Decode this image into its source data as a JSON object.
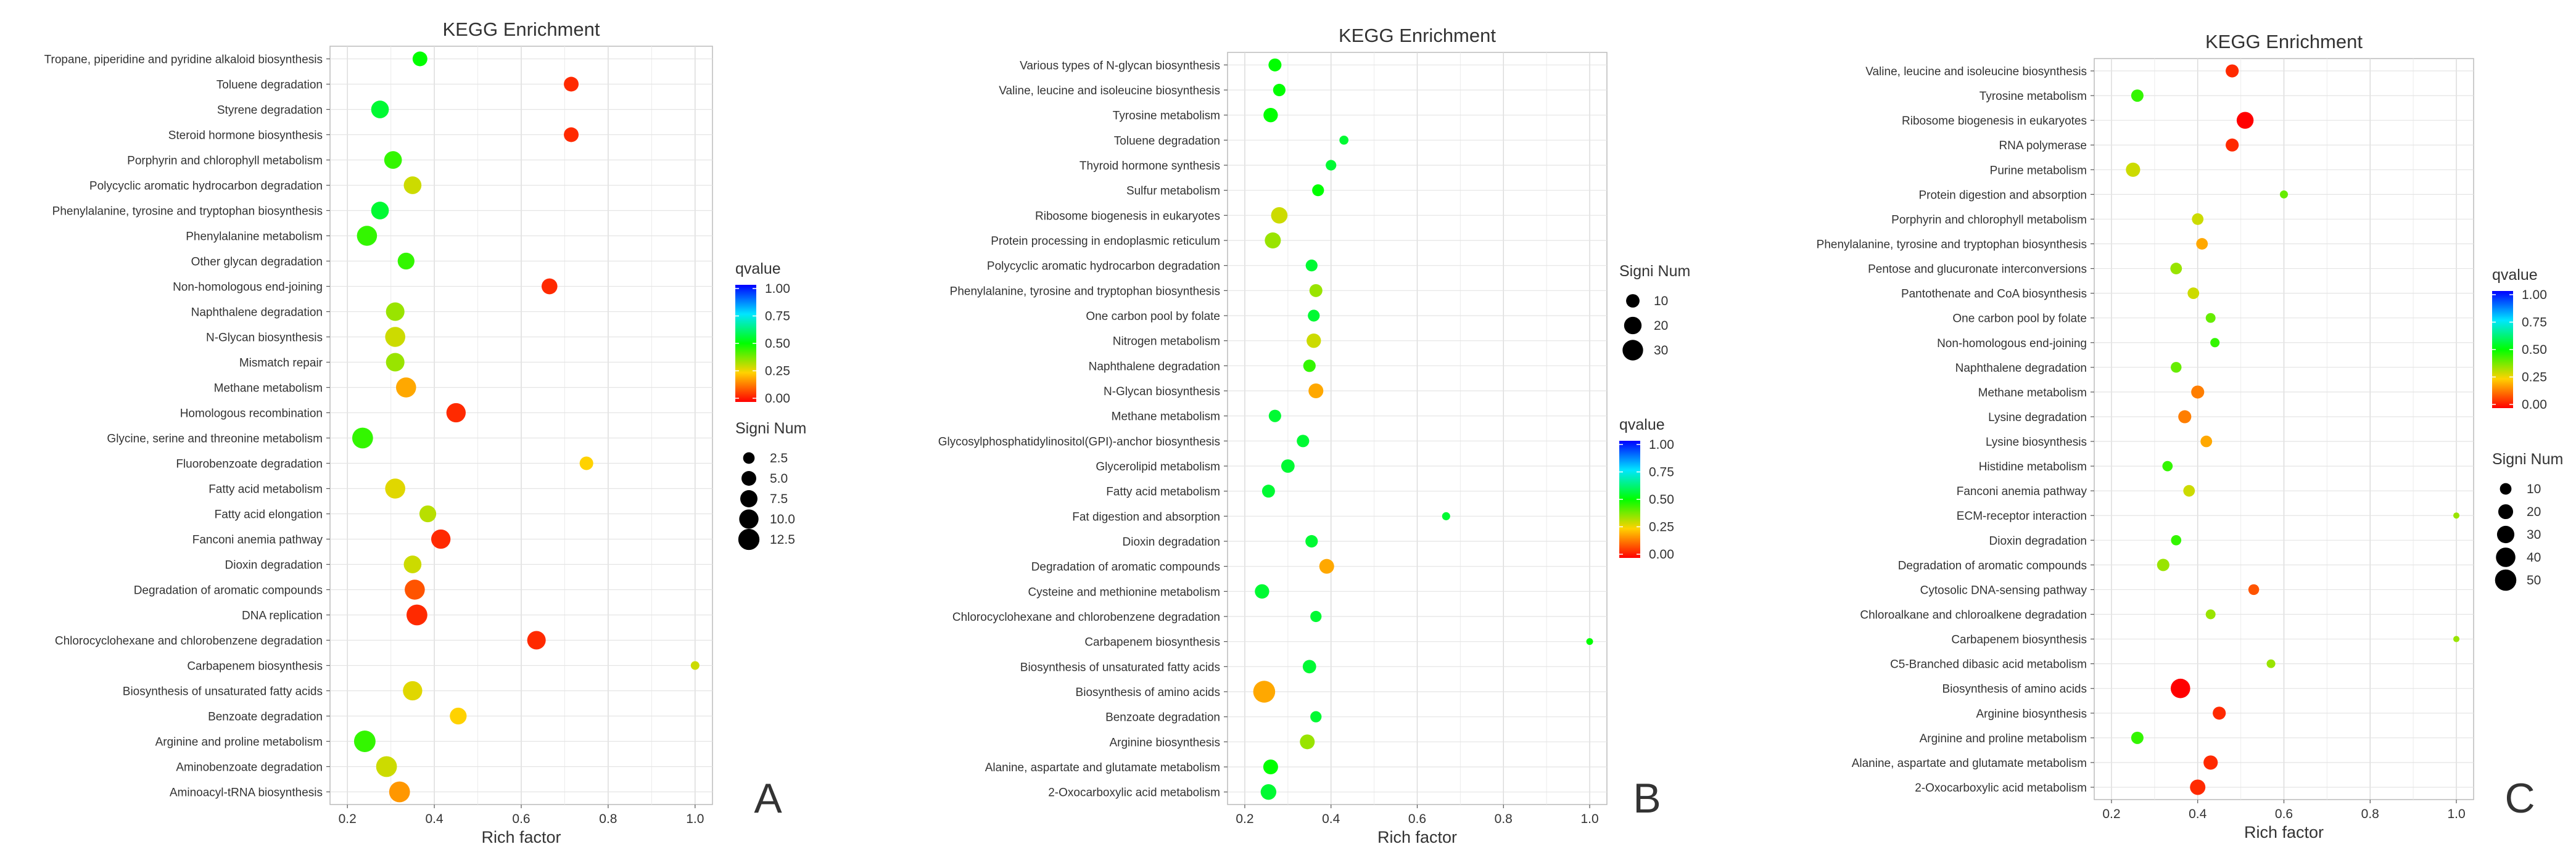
{
  "panel_letters": [
    "A",
    "B",
    "C"
  ],
  "chart_data": [
    {
      "type": "scatter",
      "title": "KEGG Enrichment",
      "xlabel": "Rich factor",
      "xlim": [
        0.2,
        1.0
      ],
      "xticks": [
        "0.2",
        "0.4",
        "0.6",
        "0.8",
        "1.0"
      ],
      "grid": true,
      "color_legend": {
        "title": "qvalue",
        "ticks": [
          "1.00",
          "0.75",
          "0.50",
          "0.25",
          "0.00"
        ],
        "low_color": "#ff0000",
        "mid_color": "#00ff00",
        "high_color": "#0000ff",
        "placement": "right"
      },
      "size_legend": {
        "title": "Signi Num",
        "ticks": [
          "2.5",
          "5.0",
          "7.5",
          "10.0",
          "12.5"
        ],
        "placement": "right"
      },
      "size_range": [
        1,
        14
      ],
      "categories": [
        "Tropane, piperidine and pyridine alkaloid biosynthesis",
        "Toluene degradation",
        "Styrene degradation",
        "Steroid hormone biosynthesis",
        "Porphyrin and chlorophyll metabolism",
        "Polycyclic aromatic hydrocarbon degradation",
        "Phenylalanine, tyrosine and tryptophan biosynthesis",
        "Phenylalanine metabolism",
        "Other glycan degradation",
        "Non-homologous end-joining",
        "Naphthalene degradation",
        "N-Glycan biosynthesis",
        "Mismatch repair",
        "Methane metabolism",
        "Homologous recombination",
        "Glycine, serine and threonine metabolism",
        "Fluorobenzoate degradation",
        "Fatty acid metabolism",
        "Fatty acid elongation",
        "Fanconi anemia pathway",
        "Dioxin degradation",
        "Degradation of aromatic compounds",
        "DNA replication",
        "Chlorocyclohexane and chlorobenzene degradation",
        "Carbapenem biosynthesis",
        "Biosynthesis of unsaturated fatty acids",
        "Benzoate degradation",
        "Arginine and proline metabolism",
        "Aminobenzoate degradation",
        "Aminoacyl-tRNA biosynthesis"
      ],
      "x": [
        0.367,
        0.715,
        0.275,
        0.715,
        0.305,
        0.35,
        0.275,
        0.245,
        0.335,
        0.665,
        0.31,
        0.31,
        0.31,
        0.335,
        0.45,
        0.235,
        0.75,
        0.31,
        0.385,
        0.415,
        0.35,
        0.355,
        0.36,
        0.635,
        1.0,
        0.35,
        0.455,
        0.24,
        0.29,
        0.32
      ],
      "size": [
        5,
        5,
        8,
        5,
        8,
        8,
        8,
        11,
        7,
        6,
        9,
        11,
        9,
        11,
        10,
        12,
        4,
        11,
        7,
        10,
        8,
        11,
        12,
        9,
        1,
        10,
        7,
        13,
        12,
        12
      ],
      "qvalue": [
        0.5,
        0.05,
        0.55,
        0.05,
        0.45,
        0.3,
        0.55,
        0.45,
        0.45,
        0.05,
        0.35,
        0.3,
        0.35,
        0.2,
        0.05,
        0.45,
        0.25,
        0.28,
        0.32,
        0.05,
        0.3,
        0.1,
        0.05,
        0.05,
        0.3,
        0.28,
        0.25,
        0.45,
        0.3,
        0.18
      ]
    },
    {
      "type": "scatter",
      "title": "KEGG Enrichment",
      "xlabel": "Rich factor",
      "xlim": [
        0.2,
        1.0
      ],
      "xticks": [
        "0.2",
        "0.4",
        "0.6",
        "0.8",
        "1.0"
      ],
      "grid": true,
      "color_legend": {
        "title": "qvalue",
        "ticks": [
          "1.00",
          "0.75",
          "0.50",
          "0.25",
          "0.00"
        ],
        "low_color": "#ff0000",
        "mid_color": "#00ff00",
        "high_color": "#0000ff",
        "placement": "right"
      },
      "size_legend": {
        "title": "Signi Num",
        "ticks": [
          "10",
          "20",
          "30"
        ],
        "placement": "right"
      },
      "size_range": [
        1,
        36
      ],
      "categories": [
        "Various types of N-glycan biosynthesis",
        "Valine, leucine and isoleucine biosynthesis",
        "Tyrosine metabolism",
        "Toluene degradation",
        "Thyroid hormone synthesis",
        "Sulfur metabolism",
        "Ribosome biogenesis in eukaryotes",
        "Protein processing in endoplasmic reticulum",
        "Polycyclic aromatic hydrocarbon degradation",
        "Phenylalanine, tyrosine and tryptophan biosynthesis",
        "One carbon pool by folate",
        "Nitrogen metabolism",
        "Naphthalene degradation",
        "N-Glycan biosynthesis",
        "Methane metabolism",
        "Glycosylphosphatidylinositol(GPI)-anchor biosynthesis",
        "Glycerolipid metabolism",
        "Fatty acid metabolism",
        "Fat digestion and absorption",
        "Dioxin degradation",
        "Degradation of aromatic compounds",
        "Cysteine and methionine metabolism",
        "Chlorocyclohexane and chlorobenzene degradation",
        "Carbapenem biosynthesis",
        "Biosynthesis of unsaturated fatty acids",
        "Biosynthesis of amino acids",
        "Benzoate degradation",
        "Arginine biosynthesis",
        "Alanine, aspartate and glutamate metabolism",
        "2-Oxocarboxylic acid metabolism"
      ],
      "x": [
        0.27,
        0.28,
        0.26,
        0.43,
        0.4,
        0.37,
        0.28,
        0.265,
        0.355,
        0.365,
        0.36,
        0.36,
        0.35,
        0.365,
        0.27,
        0.335,
        0.3,
        0.255,
        0.667,
        0.355,
        0.39,
        0.24,
        0.365,
        1.0,
        0.35,
        0.245,
        0.365,
        0.345,
        0.26,
        0.255
      ],
      "size": [
        9,
        8,
        12,
        3,
        5,
        7,
        17,
        16,
        7,
        9,
        7,
        12,
        8,
        13,
        8,
        8,
        10,
        9,
        2,
        8,
        13,
        12,
        6,
        1,
        10,
        35,
        6,
        13,
        13,
        15
      ],
      "qvalue": [
        0.5,
        0.5,
        0.5,
        0.55,
        0.55,
        0.5,
        0.3,
        0.35,
        0.55,
        0.35,
        0.55,
        0.3,
        0.45,
        0.2,
        0.55,
        0.55,
        0.55,
        0.55,
        0.55,
        0.55,
        0.2,
        0.55,
        0.55,
        0.5,
        0.55,
        0.2,
        0.55,
        0.35,
        0.5,
        0.55
      ]
    },
    {
      "type": "scatter",
      "title": "KEGG Enrichment",
      "xlabel": "Rich factor",
      "xlim": [
        0.2,
        1.0
      ],
      "xticks": [
        "0.2",
        "0.4",
        "0.6",
        "0.8",
        "1.0"
      ],
      "grid": true,
      "color_legend": {
        "title": "qvalue",
        "ticks": [
          "1.00",
          "0.75",
          "0.50",
          "0.25",
          "0.00"
        ],
        "low_color": "#ff0000",
        "mid_color": "#00ff00",
        "high_color": "#0000ff",
        "placement": "right"
      },
      "size_legend": {
        "title": "Signi Num",
        "ticks": [
          "10",
          "20",
          "30",
          "40",
          "50"
        ],
        "placement": "right"
      },
      "size_range": [
        1,
        55
      ],
      "categories": [
        "Valine, leucine and isoleucine biosynthesis",
        "Tyrosine metabolism",
        "Ribosome biogenesis in eukaryotes",
        "RNA polymerase",
        "Purine metabolism",
        "Protein digestion and absorption",
        "Porphyrin and chlorophyll metabolism",
        "Phenylalanine, tyrosine and tryptophan biosynthesis",
        "Pentose and glucuronate interconversions",
        "Pantothenate and CoA biosynthesis",
        "One carbon pool by folate",
        "Non-homologous end-joining",
        "Naphthalene degradation",
        "Methane metabolism",
        "Lysine degradation",
        "Lysine biosynthesis",
        "Histidine metabolism",
        "Fanconi anemia pathway",
        "ECM-receptor interaction",
        "Dioxin degradation",
        "Degradation of aromatic compounds",
        "Cytosolic DNA-sensing pathway",
        "Chloroalkane and chloroalkene degradation",
        "Carbapenem biosynthesis",
        "C5-Branched dibasic acid metabolism",
        "Biosynthesis of amino acids",
        "Arginine biosynthesis",
        "Arginine and proline metabolism",
        "Alanine, aspartate and glutamate metabolism",
        "2-Oxocarboxylic acid metabolism"
      ],
      "x": [
        0.48,
        0.26,
        0.51,
        0.48,
        0.25,
        0.6,
        0.4,
        0.41,
        0.35,
        0.39,
        0.43,
        0.44,
        0.35,
        0.4,
        0.37,
        0.42,
        0.33,
        0.38,
        1.0,
        0.35,
        0.32,
        0.53,
        0.43,
        1.0,
        0.57,
        0.36,
        0.45,
        0.26,
        0.43,
        0.4
      ],
      "size": [
        14,
        12,
        28,
        14,
        18,
        3,
        10,
        10,
        10,
        10,
        6,
        5,
        8,
        14,
        14,
        10,
        7,
        10,
        1,
        7,
        12,
        8,
        6,
        1,
        4,
        40,
        14,
        12,
        18,
        22
      ],
      "qvalue": [
        0.05,
        0.45,
        0.0,
        0.05,
        0.3,
        0.4,
        0.3,
        0.2,
        0.35,
        0.3,
        0.4,
        0.45,
        0.4,
        0.15,
        0.15,
        0.2,
        0.45,
        0.3,
        0.35,
        0.45,
        0.35,
        0.1,
        0.35,
        0.35,
        0.35,
        0.0,
        0.05,
        0.45,
        0.05,
        0.05
      ]
    }
  ]
}
